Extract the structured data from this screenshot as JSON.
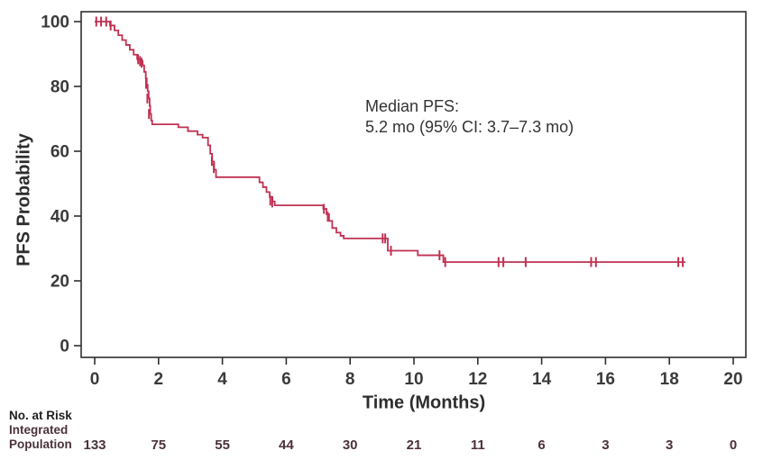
{
  "figure": {
    "ylabel": "PFS Probability",
    "xlabel": "Time (Months)",
    "annotation_line1": "Median PFS:",
    "annotation_line2": "5.2 mo (95% CI: 3.7–7.3 mo)",
    "risk_header": "No. at Risk",
    "risk_label_line1": "Integrated",
    "risk_label_line2": "Population"
  },
  "colors": {
    "series": "#C03152",
    "frame": "#2f2f2f",
    "tick_text": "#3a3a3a",
    "risk_text": "#4b323b"
  },
  "chart_data": {
    "type": "line",
    "subtype": "kaplan-meier-step",
    "title": "",
    "xlabel": "Time (Months)",
    "ylabel": "PFS Probability",
    "xlim": [
      0,
      20
    ],
    "ylim": [
      0,
      100
    ],
    "x_ticks": [
      0,
      2,
      4,
      6,
      8,
      10,
      12,
      14,
      16,
      18,
      20
    ],
    "y_ticks": [
      0,
      20,
      40,
      60,
      80,
      100
    ],
    "grid": false,
    "legend": "none",
    "annotation": {
      "lines": [
        "Median PFS:",
        "5.2 mo (95% CI: 3.7–7.3 mo)"
      ],
      "median_months": 5.2,
      "ci95_low": 3.7,
      "ci95_high": 7.3
    },
    "series": [
      {
        "name": "Integrated Population",
        "color": "#C03152",
        "start": [
          0,
          100
        ],
        "steps": [
          [
            0.48,
            98.8
          ],
          [
            0.62,
            97.3
          ],
          [
            0.74,
            95.8
          ],
          [
            0.86,
            94.3
          ],
          [
            0.98,
            92.8
          ],
          [
            1.1,
            91.3
          ],
          [
            1.22,
            89.8
          ],
          [
            1.33,
            88.4
          ],
          [
            1.42,
            87.8
          ],
          [
            1.5,
            86.5
          ],
          [
            1.55,
            84.5
          ],
          [
            1.6,
            82.5
          ],
          [
            1.63,
            80.5
          ],
          [
            1.66,
            78.5
          ],
          [
            1.69,
            76.3
          ],
          [
            1.72,
            74.0
          ],
          [
            1.74,
            71.5
          ],
          [
            1.77,
            69.5
          ],
          [
            1.8,
            68.3
          ],
          [
            2.62,
            67.4
          ],
          [
            2.92,
            66.2
          ],
          [
            3.22,
            65.1
          ],
          [
            3.38,
            64.2
          ],
          [
            3.55,
            61.8
          ],
          [
            3.62,
            59.2
          ],
          [
            3.68,
            56.8
          ],
          [
            3.74,
            54.3
          ],
          [
            3.8,
            52.0
          ],
          [
            5.16,
            50.4
          ],
          [
            5.27,
            48.9
          ],
          [
            5.38,
            47.4
          ],
          [
            5.48,
            45.9
          ],
          [
            5.57,
            44.5
          ],
          [
            5.64,
            43.3
          ],
          [
            7.16,
            42.2
          ],
          [
            7.26,
            40.6
          ],
          [
            7.34,
            38.5
          ],
          [
            7.44,
            36.3
          ],
          [
            7.57,
            34.9
          ],
          [
            7.7,
            33.9
          ],
          [
            7.8,
            33.1
          ],
          [
            9.18,
            29.3
          ],
          [
            10.12,
            27.9
          ],
          [
            10.92,
            25.8
          ]
        ],
        "end_time": 18.5,
        "censors": [
          [
            0.05,
            100
          ],
          [
            0.2,
            100
          ],
          [
            0.36,
            100
          ],
          [
            0.5,
            98.8
          ],
          [
            1.36,
            88.4
          ],
          [
            1.42,
            87.8
          ],
          [
            1.47,
            87.3
          ],
          [
            1.61,
            80.8
          ],
          [
            1.65,
            76.3
          ],
          [
            1.7,
            71.5
          ],
          [
            3.67,
            57.0
          ],
          [
            3.73,
            54.8
          ],
          [
            5.5,
            44.8
          ],
          [
            5.56,
            44.2
          ],
          [
            7.18,
            42.2
          ],
          [
            7.3,
            39.8
          ],
          [
            9.02,
            33.1
          ],
          [
            9.1,
            33.1
          ],
          [
            9.28,
            29.3
          ],
          [
            10.8,
            27.9
          ],
          [
            10.98,
            25.8
          ],
          [
            12.65,
            25.8
          ],
          [
            12.8,
            25.8
          ],
          [
            13.5,
            25.8
          ],
          [
            15.55,
            25.8
          ],
          [
            15.7,
            25.8
          ],
          [
            18.28,
            25.8
          ],
          [
            18.42,
            25.8
          ]
        ]
      }
    ],
    "risk_table": {
      "header": "No. at Risk",
      "times": [
        0,
        2,
        4,
        6,
        8,
        10,
        12,
        14,
        16,
        18,
        20
      ],
      "rows": [
        {
          "label": "Integrated Population",
          "values": [
            133,
            75,
            55,
            44,
            30,
            21,
            11,
            6,
            3,
            3,
            0
          ]
        }
      ]
    }
  }
}
